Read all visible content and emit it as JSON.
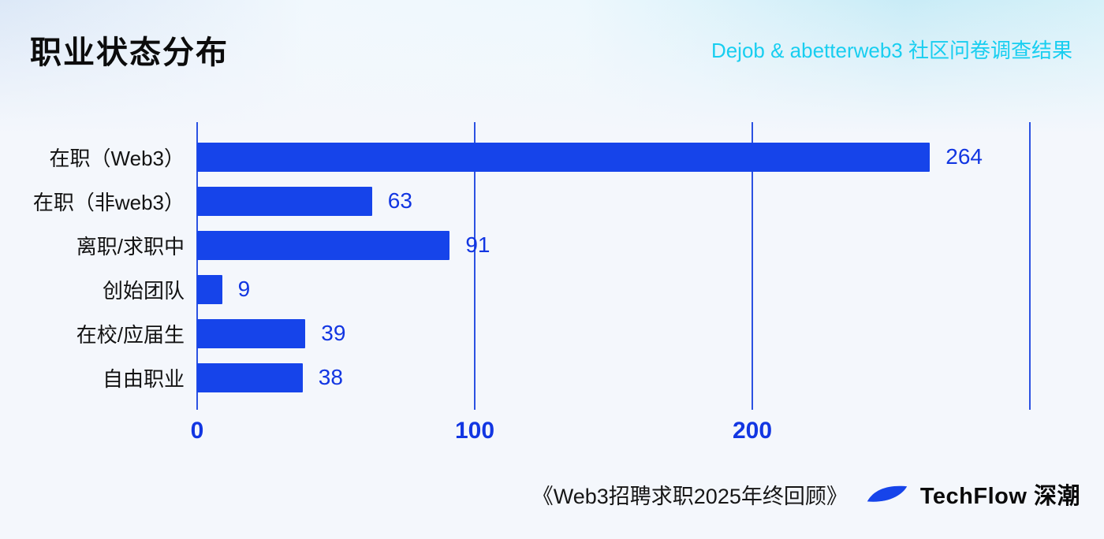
{
  "page": {
    "title": "职业状态分布",
    "subtitle": "Dejob & abetterweb3 社区问卷调查结果",
    "footer": {
      "source": "《Web3招聘求职2025年终回顾》",
      "brand": "TechFlow 深潮",
      "logo_icon": "techflow-leaf-icon"
    }
  },
  "colors": {
    "bar": "#1644ea",
    "value_label": "#1236e2",
    "axis_label": "#1236e2",
    "gridline": "#2c52e2",
    "subtitle": "#18cef0",
    "title": "#0c0c0c"
  },
  "chart_data": {
    "type": "bar",
    "orientation": "horizontal",
    "title": "职业状态分布",
    "categories": [
      "在职（Web3）",
      "在职（非web3）",
      "离职/求职中",
      "创始团队",
      "在校/应届生",
      "自由职业"
    ],
    "values": [
      264,
      63,
      91,
      9,
      39,
      38
    ],
    "xlim": [
      0,
      300
    ],
    "x_tick_labels": [
      0,
      100,
      200
    ],
    "grid_line_positions": [
      0,
      100,
      200,
      300
    ],
    "grid": true,
    "legend": false
  }
}
